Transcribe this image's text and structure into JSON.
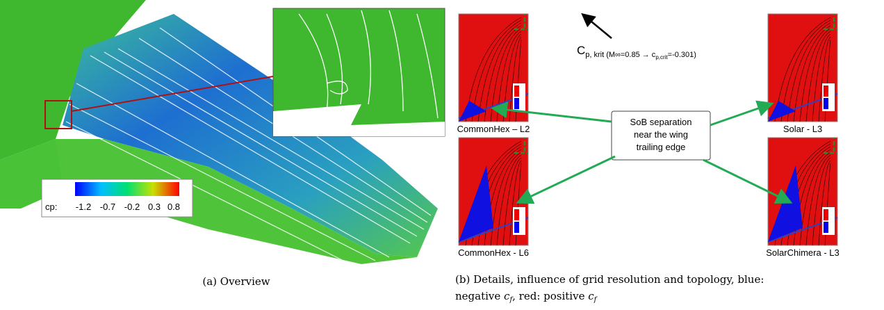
{
  "colorbar": {
    "title": "cp:",
    "labels": [
      "-1.2",
      "-0.7",
      "-0.2",
      "0.3",
      "0.8"
    ]
  },
  "caption_a": "(a) Overview",
  "panels": [
    {
      "label": "CommonHex – L2"
    },
    {
      "label": "CommonHex - L6"
    },
    {
      "label": "Solar - L3"
    },
    {
      "label": "SolarChimera - L3"
    }
  ],
  "callout": {
    "lines": [
      "SoB separation",
      "near the wing",
      "trailing edge"
    ]
  },
  "annotation": {
    "symbol": "C",
    "subscript": "p, krit",
    "detail": "(M∞=0.85 → c",
    "detail_sub": "p,crit",
    "detail_end": "=-0.301)"
  },
  "caption_b": {
    "line1": "(b) Details, influence of grid resolution and topology, blue:",
    "line2_a": "negative ",
    "cf": "c",
    "f": "f",
    "line2_b": ", red: positive "
  }
}
